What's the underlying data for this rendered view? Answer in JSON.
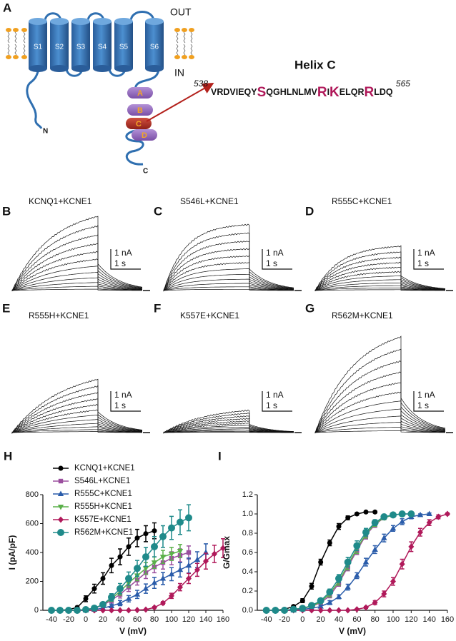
{
  "panel_a": {
    "label": "A",
    "out": "OUT",
    "in": "IN",
    "segments": [
      "S1",
      "S2",
      "S3",
      "S4",
      "S5",
      "S6"
    ],
    "n_term": "N",
    "c_term": "C",
    "helices": [
      "A",
      "B",
      "C",
      "D"
    ],
    "helix_title": "Helix C",
    "start": 538,
    "end": 565,
    "sequence": [
      {
        "text": "VRDVIEQY",
        "highlight": false
      },
      {
        "text": "S",
        "highlight": true
      },
      {
        "text": "QGHLNLMV",
        "highlight": false
      },
      {
        "text": "R",
        "highlight": true
      },
      {
        "text": "I",
        "highlight": false
      },
      {
        "text": "K",
        "highlight": true
      },
      {
        "text": "ELQR",
        "highlight": false
      },
      {
        "text": "R",
        "highlight": true
      },
      {
        "text": "LDQ",
        "highlight": false
      }
    ]
  },
  "traces": [
    {
      "label": "B",
      "title": "KCNQ1+KCNE1",
      "current_scale": "1 nA",
      "time_scale": "1 s"
    },
    {
      "label": "C",
      "title": "S546L+KCNE1",
      "current_scale": "1 nA",
      "time_scale": "1 s"
    },
    {
      "label": "D",
      "title": "R555C+KCNE1",
      "current_scale": "1 nA",
      "time_scale": "1 s"
    },
    {
      "label": "E",
      "title": "R555H+KCNE1",
      "current_scale": "1 nA",
      "time_scale": "1 s"
    },
    {
      "label": "F",
      "title": "K557E+KCNE1",
      "current_scale": "1 nA",
      "time_scale": "1 s"
    },
    {
      "label": "G",
      "title": "R562M+KCNE1",
      "current_scale": "1 nA",
      "time_scale": "1 s"
    }
  ],
  "chart_data": [
    {
      "type": "line",
      "label": "H",
      "x_label": "V (mV)",
      "y_label": "I (pA/pF)",
      "xlim": [
        -50,
        160
      ],
      "xticks": [
        -40,
        -20,
        0,
        20,
        40,
        60,
        80,
        100,
        120,
        140,
        160
      ],
      "ylim": [
        0,
        800
      ],
      "yticks": [
        0,
        200,
        400,
        600,
        800
      ],
      "legend": "upper left",
      "series": [
        {
          "name": "KCNQ1+KCNE1",
          "color": "#000000",
          "marker": "circle",
          "x": [
            -40,
            -30,
            -20,
            -10,
            0,
            10,
            20,
            30,
            40,
            50,
            60,
            70,
            80
          ],
          "values": [
            0,
            0,
            5,
            20,
            80,
            150,
            220,
            310,
            370,
            440,
            500,
            530,
            550
          ],
          "errors": [
            0,
            0,
            2,
            8,
            20,
            30,
            40,
            50,
            55,
            60,
            60,
            55,
            55
          ]
        },
        {
          "name": "S546L+KCNE1",
          "color": "#9b4f9e",
          "marker": "square",
          "x": [
            -40,
            -30,
            -20,
            -10,
            0,
            10,
            20,
            30,
            40,
            50,
            60,
            70,
            80,
            90,
            100,
            110,
            120
          ],
          "values": [
            0,
            0,
            0,
            0,
            5,
            15,
            35,
            70,
            110,
            160,
            210,
            260,
            300,
            330,
            360,
            380,
            400
          ],
          "errors": [
            0,
            0,
            0,
            0,
            3,
            8,
            12,
            20,
            25,
            30,
            35,
            40,
            40,
            45,
            45,
            45,
            45
          ]
        },
        {
          "name": "R555C+KCNE1",
          "color": "#2a5caa",
          "marker": "triangle-up",
          "x": [
            -40,
            -30,
            -20,
            -10,
            0,
            10,
            20,
            30,
            40,
            50,
            60,
            70,
            80,
            90,
            100,
            110,
            120,
            130,
            140
          ],
          "values": [
            0,
            0,
            0,
            0,
            0,
            5,
            15,
            30,
            50,
            80,
            110,
            150,
            190,
            220,
            250,
            280,
            310,
            350,
            400
          ],
          "errors": [
            0,
            0,
            0,
            0,
            0,
            3,
            8,
            12,
            18,
            22,
            28,
            32,
            38,
            42,
            45,
            50,
            52,
            55,
            60
          ]
        },
        {
          "name": "R555H+KCNE1",
          "color": "#5bb04a",
          "marker": "triangle-down",
          "x": [
            -40,
            -30,
            -20,
            -10,
            0,
            10,
            20,
            30,
            40,
            50,
            60,
            70,
            80,
            90,
            100,
            110
          ],
          "values": [
            0,
            0,
            0,
            0,
            5,
            15,
            40,
            80,
            130,
            190,
            240,
            290,
            330,
            370,
            390,
            410
          ],
          "errors": [
            0,
            0,
            0,
            0,
            3,
            8,
            12,
            18,
            25,
            30,
            35,
            40,
            40,
            45,
            45,
            45
          ]
        },
        {
          "name": "K557E+KCNE1",
          "color": "#b0195a",
          "marker": "diamond",
          "x": [
            -40,
            -30,
            -20,
            -10,
            0,
            10,
            20,
            30,
            40,
            50,
            60,
            70,
            80,
            90,
            100,
            110,
            120,
            130,
            140,
            150,
            160
          ],
          "values": [
            0,
            0,
            0,
            0,
            0,
            0,
            0,
            0,
            0,
            0,
            2,
            5,
            20,
            50,
            100,
            160,
            220,
            280,
            340,
            390,
            430
          ],
          "errors": [
            0,
            0,
            0,
            0,
            0,
            0,
            0,
            0,
            0,
            0,
            0,
            2,
            5,
            10,
            18,
            25,
            35,
            45,
            55,
            60,
            65
          ]
        },
        {
          "name": "R562M+KCNE1",
          "color": "#1f8a8a",
          "marker": "large-circle",
          "x": [
            -40,
            -30,
            -20,
            -10,
            0,
            10,
            20,
            30,
            40,
            50,
            60,
            70,
            80,
            90,
            100,
            110,
            120
          ],
          "values": [
            0,
            0,
            0,
            0,
            5,
            15,
            40,
            90,
            150,
            220,
            290,
            370,
            440,
            510,
            570,
            610,
            640
          ],
          "errors": [
            0,
            0,
            0,
            0,
            3,
            8,
            15,
            25,
            35,
            45,
            55,
            65,
            70,
            75,
            80,
            85,
            90
          ]
        }
      ]
    },
    {
      "type": "line",
      "label": "I",
      "x_label": "V (mV)",
      "y_label": "G/Gmax",
      "xlim": [
        -50,
        160
      ],
      "xticks": [
        -40,
        -20,
        0,
        20,
        40,
        60,
        80,
        100,
        120,
        140,
        160
      ],
      "ylim": [
        0,
        1.2
      ],
      "yticks": [
        {
          "value": 0,
          "label": "0.0"
        },
        0.2,
        0.4,
        0.6,
        0.8,
        {
          "value": 1,
          "label": "1.0"
        },
        1.2
      ],
      "series": [
        {
          "color": "#000000",
          "marker": "circle",
          "x": [
            -40,
            -30,
            -20,
            -10,
            0,
            10,
            20,
            30,
            40,
            50,
            60,
            70,
            80
          ],
          "values": [
            0,
            0,
            0.01,
            0.04,
            0.1,
            0.25,
            0.5,
            0.7,
            0.87,
            0.96,
            1.0,
            1.02,
            1.02
          ],
          "errors": [
            0,
            0,
            0.005,
            0.01,
            0.02,
            0.03,
            0.03,
            0.03,
            0.03,
            0.02,
            0.01,
            0.01,
            0.01
          ]
        },
        {
          "color": "#9b4f9e",
          "marker": "square",
          "x": [
            -40,
            -30,
            -20,
            -10,
            0,
            10,
            20,
            30,
            40,
            50,
            60,
            70,
            80,
            90,
            100,
            110,
            120
          ],
          "values": [
            0,
            0,
            0,
            0.01,
            0.02,
            0.04,
            0.08,
            0.15,
            0.28,
            0.45,
            0.62,
            0.78,
            0.89,
            0.96,
            0.99,
            1.0,
            1.0
          ],
          "errors": [
            0,
            0,
            0,
            0.005,
            0.01,
            0.01,
            0.02,
            0.02,
            0.03,
            0.04,
            0.04,
            0.04,
            0.03,
            0.02,
            0.01,
            0.01,
            0.01
          ]
        },
        {
          "color": "#2a5caa",
          "marker": "triangle-up",
          "x": [
            -40,
            -30,
            -20,
            -10,
            0,
            10,
            20,
            30,
            40,
            50,
            60,
            70,
            80,
            90,
            100,
            110,
            120,
            130,
            140
          ],
          "values": [
            0,
            0,
            0,
            0,
            0.01,
            0.02,
            0.04,
            0.08,
            0.14,
            0.24,
            0.36,
            0.5,
            0.63,
            0.75,
            0.85,
            0.92,
            0.97,
            0.99,
            1.0
          ],
          "errors": [
            0,
            0,
            0,
            0,
            0.005,
            0.01,
            0.01,
            0.02,
            0.02,
            0.03,
            0.03,
            0.04,
            0.04,
            0.04,
            0.03,
            0.03,
            0.02,
            0.01,
            0.01
          ]
        },
        {
          "color": "#5bb04a",
          "marker": "triangle-down",
          "x": [
            -40,
            -30,
            -20,
            -10,
            0,
            10,
            20,
            30,
            40,
            50,
            60,
            70,
            80,
            90,
            100,
            110
          ],
          "values": [
            0,
            0,
            0,
            0.01,
            0.02,
            0.04,
            0.09,
            0.17,
            0.3,
            0.47,
            0.64,
            0.79,
            0.9,
            0.96,
            0.99,
            1.0
          ],
          "errors": [
            0,
            0,
            0,
            0.005,
            0.01,
            0.01,
            0.02,
            0.03,
            0.04,
            0.05,
            0.05,
            0.04,
            0.03,
            0.02,
            0.01,
            0.01
          ]
        },
        {
          "color": "#b0195a",
          "marker": "diamond",
          "x": [
            -40,
            -30,
            -20,
            -10,
            0,
            10,
            20,
            30,
            40,
            50,
            60,
            70,
            80,
            90,
            100,
            110,
            120,
            130,
            140,
            150,
            160
          ],
          "values": [
            0,
            0,
            0,
            0,
            0,
            0,
            0,
            0,
            0,
            0,
            0.01,
            0.03,
            0.08,
            0.17,
            0.3,
            0.48,
            0.66,
            0.81,
            0.91,
            0.97,
            1.0
          ],
          "errors": [
            0,
            0,
            0,
            0,
            0,
            0,
            0,
            0,
            0,
            0,
            0.005,
            0.01,
            0.02,
            0.03,
            0.04,
            0.05,
            0.05,
            0.04,
            0.03,
            0.02,
            0.01
          ]
        },
        {
          "color": "#1f8a8a",
          "marker": "large-circle",
          "x": [
            -40,
            -30,
            -20,
            -10,
            0,
            10,
            20,
            30,
            40,
            50,
            60,
            70,
            80,
            90,
            100,
            110,
            120
          ],
          "values": [
            0,
            0,
            0,
            0.01,
            0.02,
            0.05,
            0.1,
            0.19,
            0.33,
            0.5,
            0.67,
            0.81,
            0.91,
            0.97,
            0.99,
            1.0,
            1.0
          ],
          "errors": [
            0,
            0,
            0,
            0.005,
            0.01,
            0.01,
            0.02,
            0.03,
            0.04,
            0.05,
            0.05,
            0.04,
            0.03,
            0.02,
            0.01,
            0.01,
            0.01
          ]
        }
      ]
    }
  ]
}
